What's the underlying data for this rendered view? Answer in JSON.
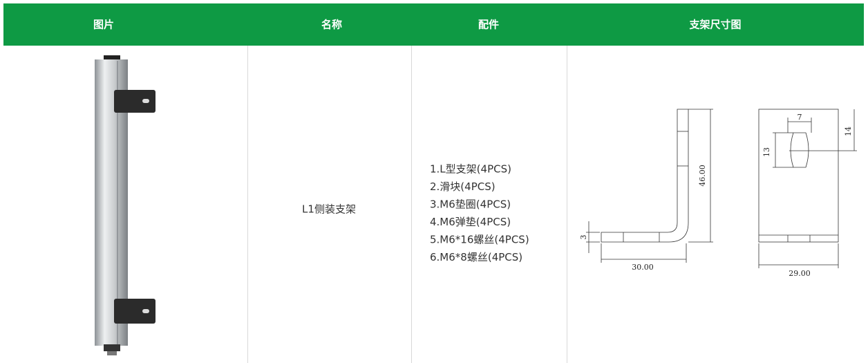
{
  "table": {
    "header": [
      "图片",
      "名称",
      "配件",
      "支架尺寸图"
    ],
    "rows": [
      {
        "name": "L1侧装支架",
        "parts": [
          "1.L型支架(4PCS)",
          "2.滑块(4PCS)",
          "3.M6垫圈(4PCS)",
          "4.M6弹垫(4PCS)",
          "5.M6*16螺丝(4PCS)",
          "6.M6*8螺丝(4PCS)"
        ],
        "dimensions": {
          "side_view": {
            "thickness": "3",
            "width": "30.00",
            "height": "46.00"
          },
          "front_view": {
            "slot_width": "7",
            "slot_offset": "14",
            "slot_height": "13",
            "width": "29.00"
          }
        }
      }
    ]
  }
}
